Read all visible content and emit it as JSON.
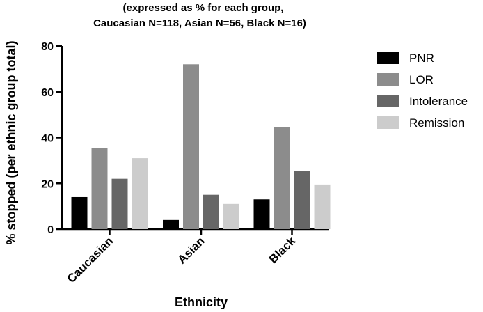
{
  "chart_data": {
    "type": "bar",
    "title_lines": [
      "(expressed as % for each group,",
      "Caucasian N=118, Asian N=56, Black N=16)"
    ],
    "xlabel": "Ethnicity",
    "ylabel": "% stopped (per ethnic group total)",
    "ylim": [
      0,
      80
    ],
    "yticks": [
      0,
      20,
      40,
      60,
      80
    ],
    "categories": [
      "Caucasian",
      "Asian",
      "Black"
    ],
    "series": [
      {
        "name": "PNR",
        "color": "#000000",
        "values": [
          14,
          4,
          13
        ]
      },
      {
        "name": "LOR",
        "color": "#8c8c8c",
        "values": [
          35.5,
          72,
          44.5
        ]
      },
      {
        "name": "Intolerance",
        "color": "#666666",
        "values": [
          22,
          15,
          25.5
        ]
      },
      {
        "name": "Remission",
        "color": "#cccccc",
        "values": [
          31,
          11,
          19.5
        ]
      }
    ],
    "legend_position": "right",
    "grid": false
  }
}
